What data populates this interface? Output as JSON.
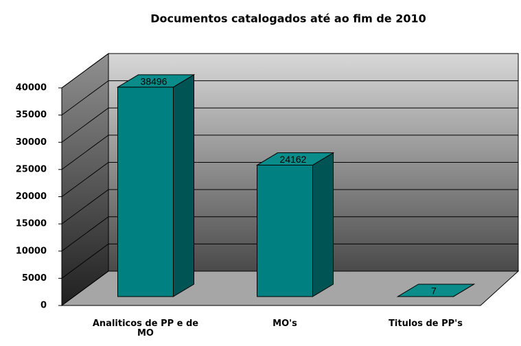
{
  "chart_data": {
    "type": "bar",
    "title": "Documentos catalogados até ao fim de 2010",
    "categories": [
      "Analiticos de PP e de MO",
      "MO's",
      "Titulos de PP's"
    ],
    "values": [
      38496,
      24162,
      7
    ],
    "color": "#008080",
    "ylim": [
      0,
      40000
    ],
    "yticks": [
      0,
      5000,
      10000,
      15000,
      20000,
      25000,
      30000,
      35000,
      40000
    ],
    "grid": true
  }
}
